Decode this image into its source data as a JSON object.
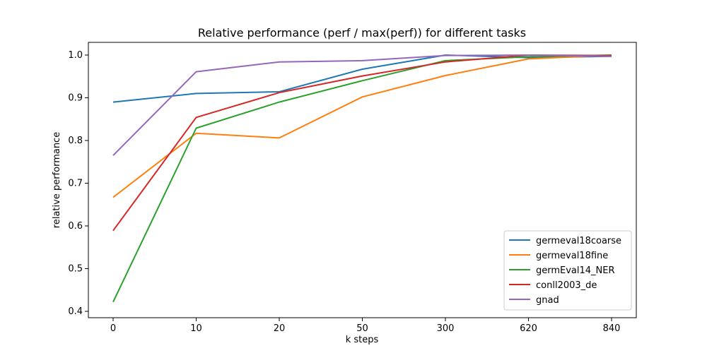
{
  "chart_data": {
    "type": "line",
    "title": "Relative performance (perf / max(perf)) for different tasks",
    "xlabel": "k steps",
    "ylabel": "relative performance",
    "categories": [
      "0",
      "10",
      "20",
      "50",
      "300",
      "620",
      "840"
    ],
    "ylim": [
      0.4,
      1.0
    ],
    "yticks": [
      "0.4",
      "0.5",
      "0.6",
      "0.7",
      "0.8",
      "0.9",
      "1.0"
    ],
    "grid": false,
    "legend_position": "bottom-right",
    "series": [
      {
        "name": "germeval18coarse",
        "color": "#1f77b4",
        "values": [
          0.89,
          0.91,
          0.914,
          0.967,
          1.0,
          0.994,
          0.997
        ]
      },
      {
        "name": "germeval18fine",
        "color": "#ff7f0e",
        "values": [
          0.667,
          0.817,
          0.806,
          0.902,
          0.952,
          0.991,
          1.0
        ]
      },
      {
        "name": "germEval14_NER",
        "color": "#2ca02c",
        "values": [
          0.422,
          0.829,
          0.89,
          0.94,
          0.987,
          0.996,
          1.0
        ]
      },
      {
        "name": "conll2003_de",
        "color": "#d62728",
        "values": [
          0.589,
          0.854,
          0.912,
          0.951,
          0.984,
          1.0,
          0.999
        ]
      },
      {
        "name": "gnad",
        "color": "#9467bd",
        "values": [
          0.765,
          0.961,
          0.984,
          0.987,
          0.999,
          1.0,
          0.997
        ]
      }
    ]
  }
}
